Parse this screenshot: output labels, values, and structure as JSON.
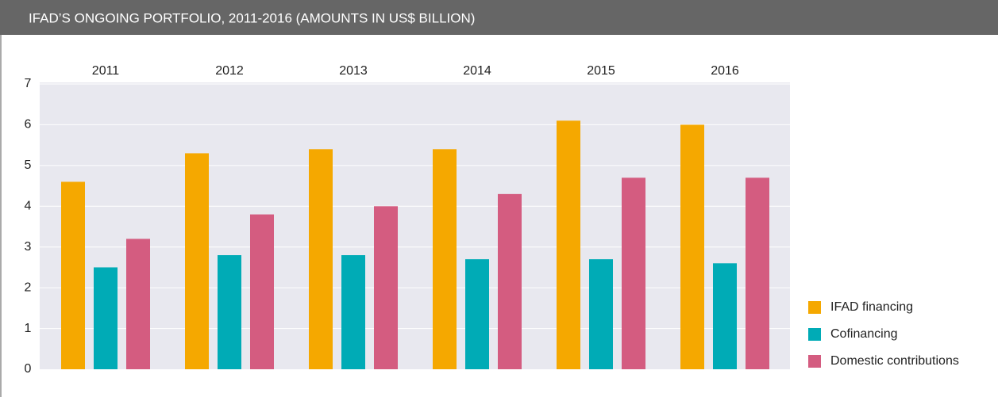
{
  "chart_data": {
    "type": "bar",
    "title": "IFAD’S ONGOING PORTFOLIO, 2011-2016 (AMOUNTS IN US$ BILLION)",
    "categories": [
      "2011",
      "2012",
      "2013",
      "2014",
      "2015",
      "2016"
    ],
    "series": [
      {
        "name": "IFAD financing",
        "color": "#f5a800",
        "values": [
          4.6,
          5.3,
          5.4,
          5.4,
          6.1,
          6.0
        ]
      },
      {
        "name": "Cofinancing",
        "color": "#00abb6",
        "values": [
          2.5,
          2.8,
          2.8,
          2.7,
          2.7,
          2.6
        ]
      },
      {
        "name": "Domestic contributions",
        "color": "#d45c80",
        "values": [
          3.2,
          3.8,
          4.0,
          4.3,
          4.7,
          4.7
        ]
      }
    ],
    "ylim": [
      0,
      7
    ],
    "yticks": [
      0,
      1,
      2,
      3,
      4,
      5,
      6,
      7
    ],
    "grid": true,
    "legend": "right"
  }
}
